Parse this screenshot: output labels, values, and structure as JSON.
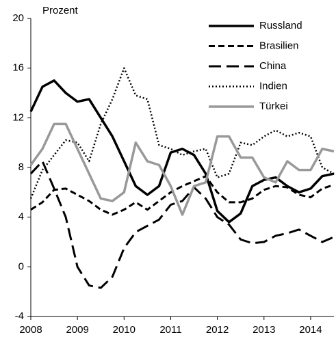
{
  "chart_data": {
    "type": "line",
    "y_label": "Prozent",
    "x": [
      2008,
      2008.25,
      2008.5,
      2008.75,
      2009,
      2009.25,
      2009.5,
      2009.75,
      2010,
      2010.25,
      2010.5,
      2010.75,
      2011,
      2011.25,
      2011.5,
      2011.75,
      2012,
      2012.25,
      2012.5,
      2012.75,
      2013,
      2013.25,
      2013.5,
      2013.75,
      2014,
      2014.25,
      2014.5
    ],
    "xlim": [
      2008,
      2014.5
    ],
    "xticks": [
      2008,
      2009,
      2010,
      2011,
      2012,
      2013,
      2014
    ],
    "ylim": [
      -4,
      20
    ],
    "yticks": [
      -4,
      0,
      4,
      8,
      12,
      16,
      20
    ],
    "legend": "top-right",
    "series": [
      {
        "name": "Russland",
        "color": "#000000",
        "line_style": "solid",
        "values": [
          12.5,
          14.5,
          15,
          14,
          13.3,
          13.5,
          12,
          10.5,
          8.5,
          6.5,
          5.8,
          6.5,
          9.2,
          9.5,
          9,
          7.5,
          4.5,
          3.6,
          4.3,
          6.5,
          7,
          7.2,
          6.5,
          6,
          6.3,
          7.3,
          7.5
        ]
      },
      {
        "name": "Brasilien",
        "color": "#000000",
        "line_style": "dashed",
        "values": [
          4.6,
          5.2,
          6.2,
          6.3,
          5.8,
          5.3,
          4.6,
          4.2,
          4.6,
          5.2,
          4.6,
          5.3,
          6,
          6.5,
          6.9,
          7.3,
          6,
          5.2,
          5.2,
          5.5,
          6.2,
          6.5,
          6.4,
          5.8,
          5.6,
          6.3,
          6.6
        ]
      },
      {
        "name": "China",
        "color": "#000000",
        "line_style": "longdash",
        "values": [
          7.5,
          8.5,
          6.3,
          4,
          0,
          -1.5,
          -1.7,
          -0.8,
          1.5,
          2.8,
          3.3,
          3.8,
          5,
          5.3,
          6.4,
          5.5,
          4,
          3.4,
          2.2,
          1.9,
          2,
          2.5,
          2.7,
          3,
          2.5,
          2,
          2.4
        ]
      },
      {
        "name": "Indien",
        "color": "#000000",
        "line_style": "dotted",
        "values": [
          5.5,
          7.8,
          9,
          10.2,
          10,
          8.5,
          11.5,
          13.5,
          16,
          13.8,
          13.5,
          9.8,
          9.5,
          9,
          9.3,
          9.5,
          7.2,
          7.5,
          10,
          9.8,
          10.5,
          11,
          10.5,
          10.8,
          10.5,
          8,
          7.5
        ]
      },
      {
        "name": "Türkei",
        "color": "#999999",
        "line_style": "solid",
        "values": [
          8.2,
          9.5,
          11.5,
          11.5,
          9.5,
          7.5,
          5.5,
          5.3,
          6,
          10,
          8.5,
          8.2,
          6.5,
          4.2,
          6.5,
          6.8,
          10.5,
          10.5,
          8.8,
          8.8,
          7.2,
          6.8,
          8.5,
          7.8,
          7.8,
          9.5,
          9.3
        ]
      }
    ]
  }
}
